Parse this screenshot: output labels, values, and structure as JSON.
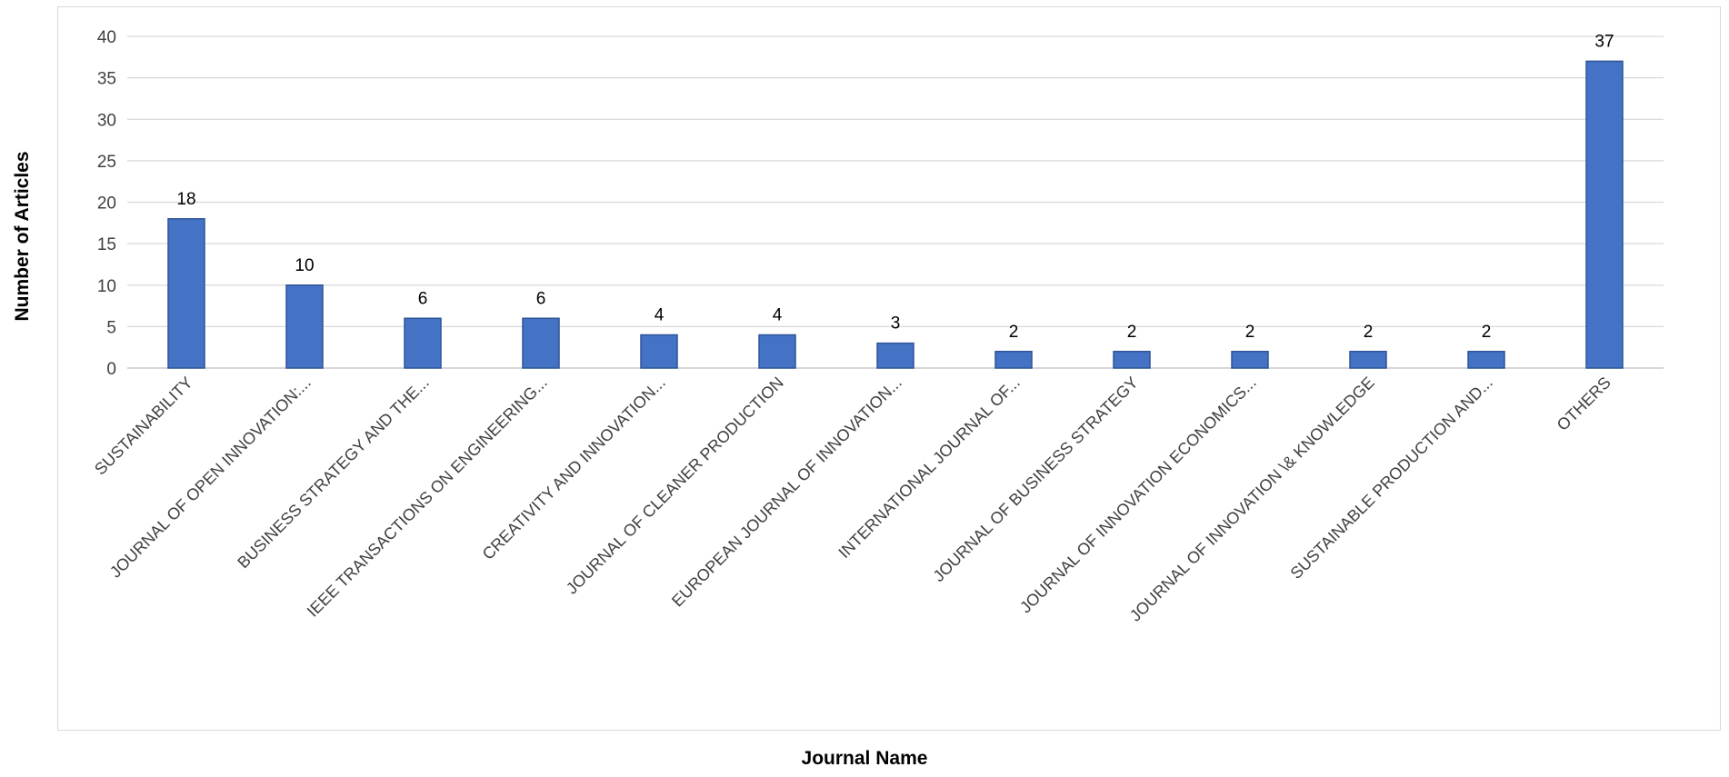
{
  "chart_data": {
    "type": "bar",
    "xlabel": "Journal Name",
    "ylabel": "Number of Articles",
    "ylim": [
      0,
      40
    ],
    "yticks": [
      0,
      5,
      10,
      15,
      20,
      25,
      30,
      35,
      40
    ],
    "grid": true,
    "bar_color": "#4472c4",
    "categories": [
      "SUSTAINABILITY",
      "JOURNAL OF OPEN INNOVATION:...",
      "BUSINESS STRATEGY AND THE...",
      "IEEE TRANSACTIONS ON ENGINEERING...",
      "CREATIVITY AND INNOVATION...",
      "JOURNAL OF CLEANER PRODUCTION",
      "EUROPEAN JOURNAL OF INNOVATION...",
      "INTERNATIONAL JOURNAL OF...",
      "JOURNAL OF BUSINESS STRATEGY",
      "JOURNAL OF INNOVATION ECONOMICS...",
      "JOURNAL OF INNOVATION \\& KNOWLEDGE",
      "SUSTAINABLE PRODUCTION AND...",
      "OTHERS"
    ],
    "values": [
      18,
      10,
      6,
      6,
      4,
      4,
      3,
      2,
      2,
      2,
      2,
      2,
      37
    ]
  }
}
